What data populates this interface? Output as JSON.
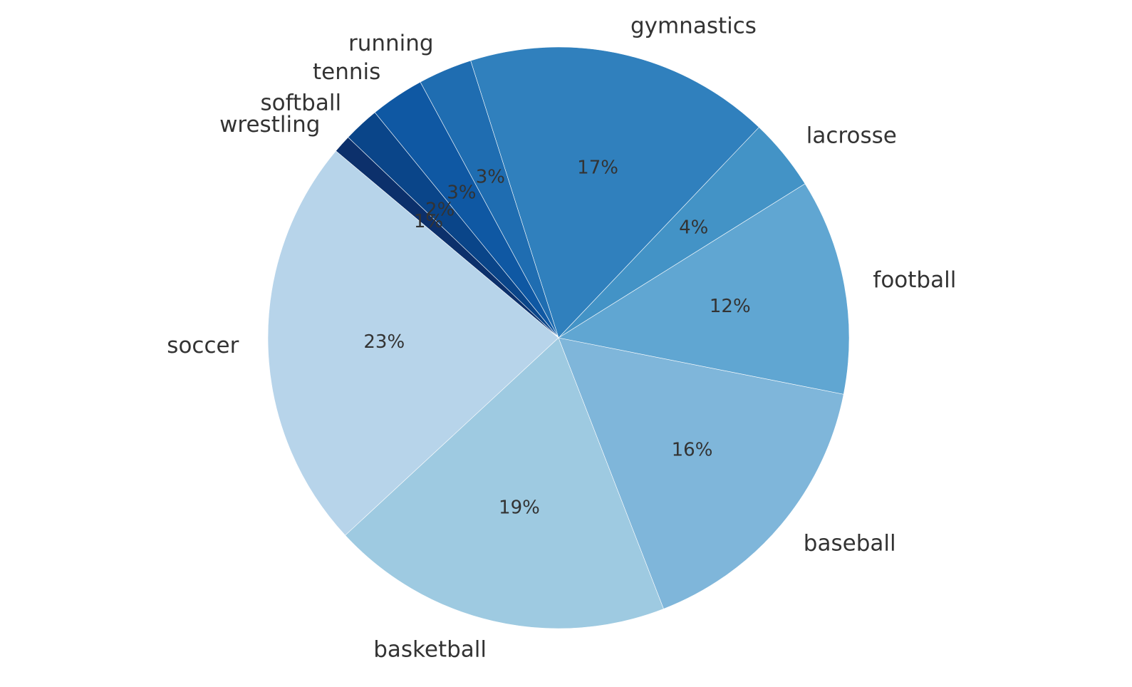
{
  "chart_data": {
    "type": "pie",
    "title": "",
    "start_angle_deg": 140,
    "direction": "counterclockwise",
    "center": [
      784,
      474
    ],
    "radius": 408,
    "categories": [
      "soccer",
      "basketball",
      "baseball",
      "football",
      "lacrosse",
      "gymnastics",
      "running",
      "tennis",
      "softball",
      "wrestling"
    ],
    "values": [
      23,
      19,
      16,
      12,
      4,
      17,
      3,
      3,
      2,
      1
    ],
    "labels": [
      "23%",
      "19%",
      "16%",
      "12%",
      "4%",
      "17%",
      "3%",
      "3%",
      "2%",
      "1%"
    ],
    "colors": [
      "#b7d4ea",
      "#9ecae1",
      "#7fb6da",
      "#60a6d2",
      "#4393c6",
      "#3080bd",
      "#1f6db1",
      "#0f58a3",
      "#0a4589",
      "#0c306b"
    ],
    "legend": "none"
  }
}
